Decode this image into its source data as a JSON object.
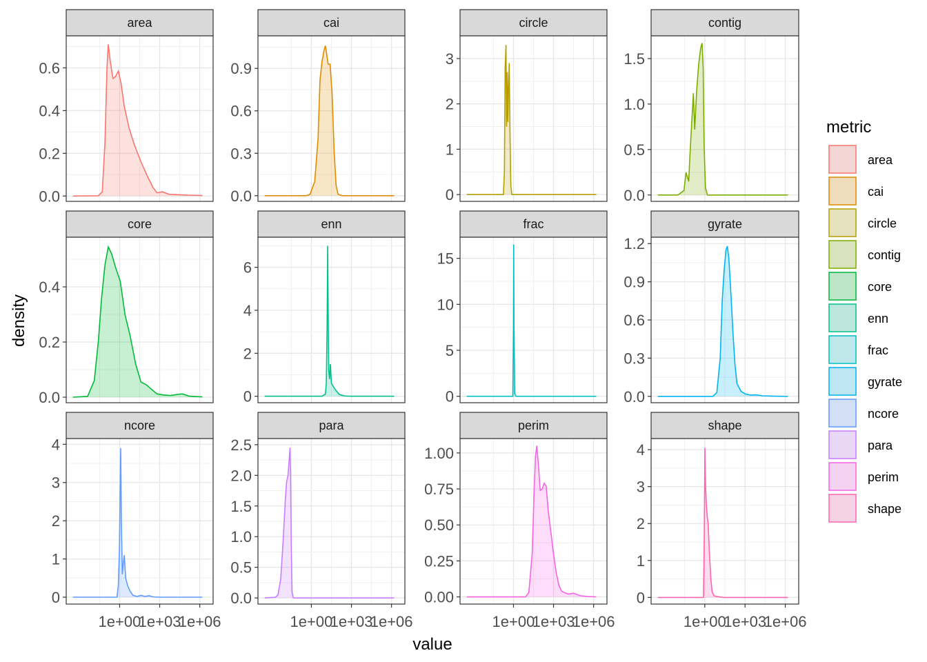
{
  "chart_data": {
    "type": "area",
    "xlabel": "value",
    "ylabel": "density",
    "x_scale": "log10",
    "x_ticks": [
      "1e+00",
      "1e+03",
      "1e+06"
    ],
    "legend": {
      "title": "metric",
      "placement": "right"
    },
    "colors": {
      "area": "#F8766D",
      "cai": "#DE8C00",
      "circle": "#B79F00",
      "contig": "#7CAE00",
      "core": "#00BA38",
      "enn": "#00C08B",
      "frac": "#00BFC4",
      "gyrate": "#00B4F0",
      "ncore": "#619CFF",
      "para": "#C77CFF",
      "perim": "#F564E3",
      "shape": "#FF64B0"
    },
    "facets": [
      {
        "metric": "area",
        "xlim": [
          -4,
          7
        ],
        "ylim": [
          -0.025,
          0.75
        ],
        "yticks": [
          0,
          0.2,
          0.4,
          0.6
        ],
        "ytick_labels": [
          "0.0",
          "0.2",
          "0.4",
          "0.6"
        ],
        "points": [
          [
            -3.5,
            0
          ],
          [
            -1.6,
            0.001
          ],
          [
            -1.3,
            0.02
          ],
          [
            -1.1,
            0.25
          ],
          [
            -0.95,
            0.6
          ],
          [
            -0.85,
            0.71
          ],
          [
            -0.7,
            0.63
          ],
          [
            -0.5,
            0.55
          ],
          [
            -0.3,
            0.56
          ],
          [
            -0.1,
            0.585
          ],
          [
            0.1,
            0.53
          ],
          [
            0.35,
            0.42
          ],
          [
            0.7,
            0.32
          ],
          [
            1.1,
            0.24
          ],
          [
            1.6,
            0.16
          ],
          [
            2.1,
            0.09
          ],
          [
            2.5,
            0.04
          ],
          [
            2.8,
            0.015
          ],
          [
            3.2,
            0.02
          ],
          [
            3.7,
            0.008
          ],
          [
            4.5,
            0.006
          ],
          [
            5.2,
            0.004
          ],
          [
            6.2,
            0.002
          ]
        ]
      },
      {
        "metric": "cai",
        "xlim": [
          -4,
          7
        ],
        "ylim": [
          -0.04,
          1.13
        ],
        "yticks": [
          0,
          0.3,
          0.6,
          0.9
        ],
        "ytick_labels": [
          "0.0",
          "0.3",
          "0.6",
          "0.9"
        ],
        "points": [
          [
            -3.5,
            0
          ],
          [
            -0.4,
            0
          ],
          [
            -0.1,
            0.01
          ],
          [
            0.25,
            0.1
          ],
          [
            0.5,
            0.4
          ],
          [
            0.65,
            0.82
          ],
          [
            0.8,
            0.95
          ],
          [
            0.95,
            1.03
          ],
          [
            1.05,
            1.06
          ],
          [
            1.15,
            1.0
          ],
          [
            1.25,
            0.93
          ],
          [
            1.4,
            0.93
          ],
          [
            1.55,
            0.72
          ],
          [
            1.7,
            0.32
          ],
          [
            1.85,
            0.07
          ],
          [
            2.0,
            0.01
          ],
          [
            2.3,
            0
          ],
          [
            6.2,
            0
          ]
        ]
      },
      {
        "metric": "circle",
        "xlim": [
          -4,
          7
        ],
        "ylim": [
          -0.15,
          3.5
        ],
        "yticks": [
          0,
          1,
          2,
          3
        ],
        "ytick_labels": [
          "0",
          "1",
          "2",
          "3"
        ],
        "points": [
          [
            -3.5,
            0
          ],
          [
            -0.75,
            0
          ],
          [
            -0.68,
            0.5
          ],
          [
            -0.62,
            2.8
          ],
          [
            -0.56,
            3.3
          ],
          [
            -0.52,
            1.5
          ],
          [
            -0.47,
            2.7
          ],
          [
            -0.42,
            1.6
          ],
          [
            -0.37,
            2.35
          ],
          [
            -0.32,
            2.9
          ],
          [
            -0.26,
            1.4
          ],
          [
            -0.2,
            0.2
          ],
          [
            -0.12,
            0
          ],
          [
            6.2,
            0
          ]
        ]
      },
      {
        "metric": "contig",
        "xlim": [
          -4,
          7
        ],
        "ylim": [
          -0.07,
          1.75
        ],
        "yticks": [
          0,
          0.5,
          1.0,
          1.5
        ],
        "ytick_labels": [
          "0.0",
          "0.5",
          "1.0",
          "1.5"
        ],
        "points": [
          [
            -3.5,
            0
          ],
          [
            -2.0,
            0
          ],
          [
            -1.55,
            0.05
          ],
          [
            -1.4,
            0.25
          ],
          [
            -1.3,
            0.2
          ],
          [
            -1.2,
            0.15
          ],
          [
            -1.1,
            0.45
          ],
          [
            -0.95,
            0.85
          ],
          [
            -0.85,
            1.12
          ],
          [
            -0.75,
            0.72
          ],
          [
            -0.6,
            1.15
          ],
          [
            -0.45,
            1.45
          ],
          [
            -0.3,
            1.62
          ],
          [
            -0.2,
            1.67
          ],
          [
            -0.12,
            1.4
          ],
          [
            -0.05,
            0.55
          ],
          [
            0.05,
            0.08
          ],
          [
            0.2,
            0
          ],
          [
            6.2,
            0
          ]
        ]
      },
      {
        "metric": "core",
        "xlim": [
          -4,
          7
        ],
        "ylim": [
          -0.02,
          0.58
        ],
        "yticks": [
          0,
          0.2,
          0.4
        ],
        "ytick_labels": [
          "0.0",
          "0.2",
          "0.4"
        ],
        "points": [
          [
            -3.5,
            0
          ],
          [
            -2.4,
            0.003
          ],
          [
            -1.9,
            0.06
          ],
          [
            -1.6,
            0.2
          ],
          [
            -1.35,
            0.36
          ],
          [
            -1.1,
            0.48
          ],
          [
            -0.85,
            0.545
          ],
          [
            -0.6,
            0.52
          ],
          [
            -0.3,
            0.47
          ],
          [
            0.05,
            0.42
          ],
          [
            0.4,
            0.3
          ],
          [
            0.8,
            0.22
          ],
          [
            1.2,
            0.12
          ],
          [
            1.6,
            0.055
          ],
          [
            2.0,
            0.045
          ],
          [
            2.4,
            0.028
          ],
          [
            2.8,
            0.012
          ],
          [
            3.3,
            0.008
          ],
          [
            3.8,
            0.006
          ],
          [
            4.3,
            0.01
          ],
          [
            4.7,
            0.012
          ],
          [
            5.2,
            0.004
          ],
          [
            6.2,
            0.001
          ]
        ]
      },
      {
        "metric": "enn",
        "xlim": [
          -4,
          7
        ],
        "ylim": [
          -0.3,
          7.4
        ],
        "yticks": [
          0,
          2,
          4,
          6
        ],
        "ytick_labels": [
          "0",
          "2",
          "4",
          "6"
        ],
        "points": [
          [
            -3.5,
            0
          ],
          [
            0.8,
            0
          ],
          [
            1.05,
            0.1
          ],
          [
            1.12,
            0.6
          ],
          [
            1.18,
            3.5
          ],
          [
            1.22,
            7.0
          ],
          [
            1.26,
            3.5
          ],
          [
            1.3,
            1.2
          ],
          [
            1.36,
            0.8
          ],
          [
            1.42,
            1.5
          ],
          [
            1.5,
            0.6
          ],
          [
            1.6,
            0.5
          ],
          [
            1.8,
            0.3
          ],
          [
            2.1,
            0.08
          ],
          [
            2.5,
            0.01
          ],
          [
            3.0,
            0
          ],
          [
            6.2,
            0
          ]
        ]
      },
      {
        "metric": "frac",
        "xlim": [
          -4,
          7
        ],
        "ylim": [
          -0.7,
          17.3
        ],
        "yticks": [
          0,
          5,
          10,
          15
        ],
        "ytick_labels": [
          "0",
          "5",
          "10",
          "15"
        ],
        "points": [
          [
            -3.5,
            0
          ],
          [
            -0.05,
            0
          ],
          [
            0.0,
            8.0
          ],
          [
            0.02,
            16.5
          ],
          [
            0.04,
            8.0
          ],
          [
            0.09,
            0.3
          ],
          [
            0.2,
            0
          ],
          [
            6.2,
            0
          ]
        ]
      },
      {
        "metric": "gyrate",
        "xlim": [
          -4,
          7
        ],
        "ylim": [
          -0.05,
          1.25
        ],
        "yticks": [
          0,
          0.3,
          0.6,
          0.9,
          1.2
        ],
        "ytick_labels": [
          "0.0",
          "0.3",
          "0.6",
          "0.9",
          "1.2"
        ],
        "points": [
          [
            -3.5,
            0
          ],
          [
            0.6,
            0
          ],
          [
            0.9,
            0.03
          ],
          [
            1.15,
            0.3
          ],
          [
            1.3,
            0.75
          ],
          [
            1.45,
            1.0
          ],
          [
            1.58,
            1.15
          ],
          [
            1.68,
            1.18
          ],
          [
            1.8,
            1.08
          ],
          [
            1.95,
            0.8
          ],
          [
            2.1,
            0.5
          ],
          [
            2.25,
            0.25
          ],
          [
            2.4,
            0.1
          ],
          [
            2.7,
            0.04
          ],
          [
            3.0,
            0.02
          ],
          [
            3.4,
            0.01
          ],
          [
            3.8,
            0.012
          ],
          [
            4.3,
            0.004
          ],
          [
            5.0,
            0.002
          ],
          [
            6.2,
            0
          ]
        ]
      },
      {
        "metric": "ncore",
        "xlim": [
          -4,
          7
        ],
        "ylim": [
          -0.18,
          4.15
        ],
        "yticks": [
          0,
          1,
          2,
          3,
          4
        ],
        "ytick_labels": [
          "0",
          "1",
          "2",
          "3",
          "4"
        ],
        "points": [
          [
            -3.5,
            0
          ],
          [
            -0.2,
            0
          ],
          [
            -0.1,
            0.3
          ],
          [
            -0.02,
            1.2
          ],
          [
            0.04,
            2.8
          ],
          [
            0.08,
            3.9
          ],
          [
            0.13,
            2.0
          ],
          [
            0.2,
            0.6
          ],
          [
            0.28,
            0.9
          ],
          [
            0.35,
            1.1
          ],
          [
            0.45,
            0.5
          ],
          [
            0.6,
            0.3
          ],
          [
            0.8,
            0.15
          ],
          [
            1.0,
            0.05
          ],
          [
            1.3,
            0.02
          ],
          [
            1.6,
            0.05
          ],
          [
            1.9,
            0.02
          ],
          [
            2.2,
            0.04
          ],
          [
            2.5,
            0.01
          ],
          [
            3.0,
            0
          ],
          [
            6.2,
            0
          ]
        ]
      },
      {
        "metric": "para",
        "xlim": [
          -4,
          7
        ],
        "ylim": [
          -0.1,
          2.6
        ],
        "yticks": [
          0,
          0.5,
          1.0,
          1.5,
          2.0,
          2.5
        ],
        "ytick_labels": [
          "0.0",
          "0.5",
          "1.0",
          "1.5",
          "2.0",
          "2.5"
        ],
        "points": [
          [
            -3.5,
            0
          ],
          [
            -2.7,
            0.01
          ],
          [
            -2.5,
            0.05
          ],
          [
            -2.3,
            0.3
          ],
          [
            -2.15,
            0.8
          ],
          [
            -2.05,
            1.2
          ],
          [
            -1.95,
            1.6
          ],
          [
            -1.85,
            1.9
          ],
          [
            -1.75,
            2.0
          ],
          [
            -1.68,
            2.2
          ],
          [
            -1.6,
            2.45
          ],
          [
            -1.55,
            2.0
          ],
          [
            -1.5,
            0.8
          ],
          [
            -1.45,
            0.1
          ],
          [
            -1.35,
            0
          ],
          [
            6.2,
            0
          ]
        ]
      },
      {
        "metric": "perim",
        "xlim": [
          -4,
          7
        ],
        "ylim": [
          -0.05,
          1.1
        ],
        "yticks": [
          0,
          0.25,
          0.5,
          0.75,
          1.0
        ],
        "ytick_labels": [
          "0.00",
          "0.25",
          "0.50",
          "0.75",
          "1.00"
        ],
        "points": [
          [
            -3.5,
            0
          ],
          [
            0.9,
            0
          ],
          [
            1.15,
            0.03
          ],
          [
            1.4,
            0.3
          ],
          [
            1.55,
            0.75
          ],
          [
            1.65,
            0.98
          ],
          [
            1.75,
            1.05
          ],
          [
            1.88,
            0.9
          ],
          [
            2.0,
            0.74
          ],
          [
            2.15,
            0.75
          ],
          [
            2.3,
            0.79
          ],
          [
            2.45,
            0.77
          ],
          [
            2.6,
            0.6
          ],
          [
            2.8,
            0.45
          ],
          [
            3.0,
            0.3
          ],
          [
            3.2,
            0.17
          ],
          [
            3.4,
            0.08
          ],
          [
            3.6,
            0.04
          ],
          [
            3.8,
            0.03
          ],
          [
            4.1,
            0.02
          ],
          [
            4.5,
            0.025
          ],
          [
            5.0,
            0.008
          ],
          [
            5.6,
            0.002
          ],
          [
            6.2,
            0
          ]
        ]
      },
      {
        "metric": "shape",
        "xlim": [
          -4,
          7
        ],
        "ylim": [
          -0.18,
          4.3
        ],
        "yticks": [
          0,
          1,
          2,
          3,
          4
        ],
        "ytick_labels": [
          "0",
          "1",
          "2",
          "3",
          "4"
        ],
        "points": [
          [
            -3.5,
            0
          ],
          [
            -0.1,
            0
          ],
          [
            -0.04,
            1.5
          ],
          [
            0.01,
            4.05
          ],
          [
            0.06,
            3.0
          ],
          [
            0.12,
            2.5
          ],
          [
            0.18,
            2.2
          ],
          [
            0.25,
            2.0
          ],
          [
            0.35,
            1.2
          ],
          [
            0.45,
            0.5
          ],
          [
            0.55,
            0.15
          ],
          [
            0.7,
            0.04
          ],
          [
            1.0,
            0.02
          ],
          [
            1.4,
            0
          ],
          [
            6.2,
            0
          ]
        ]
      }
    ]
  }
}
